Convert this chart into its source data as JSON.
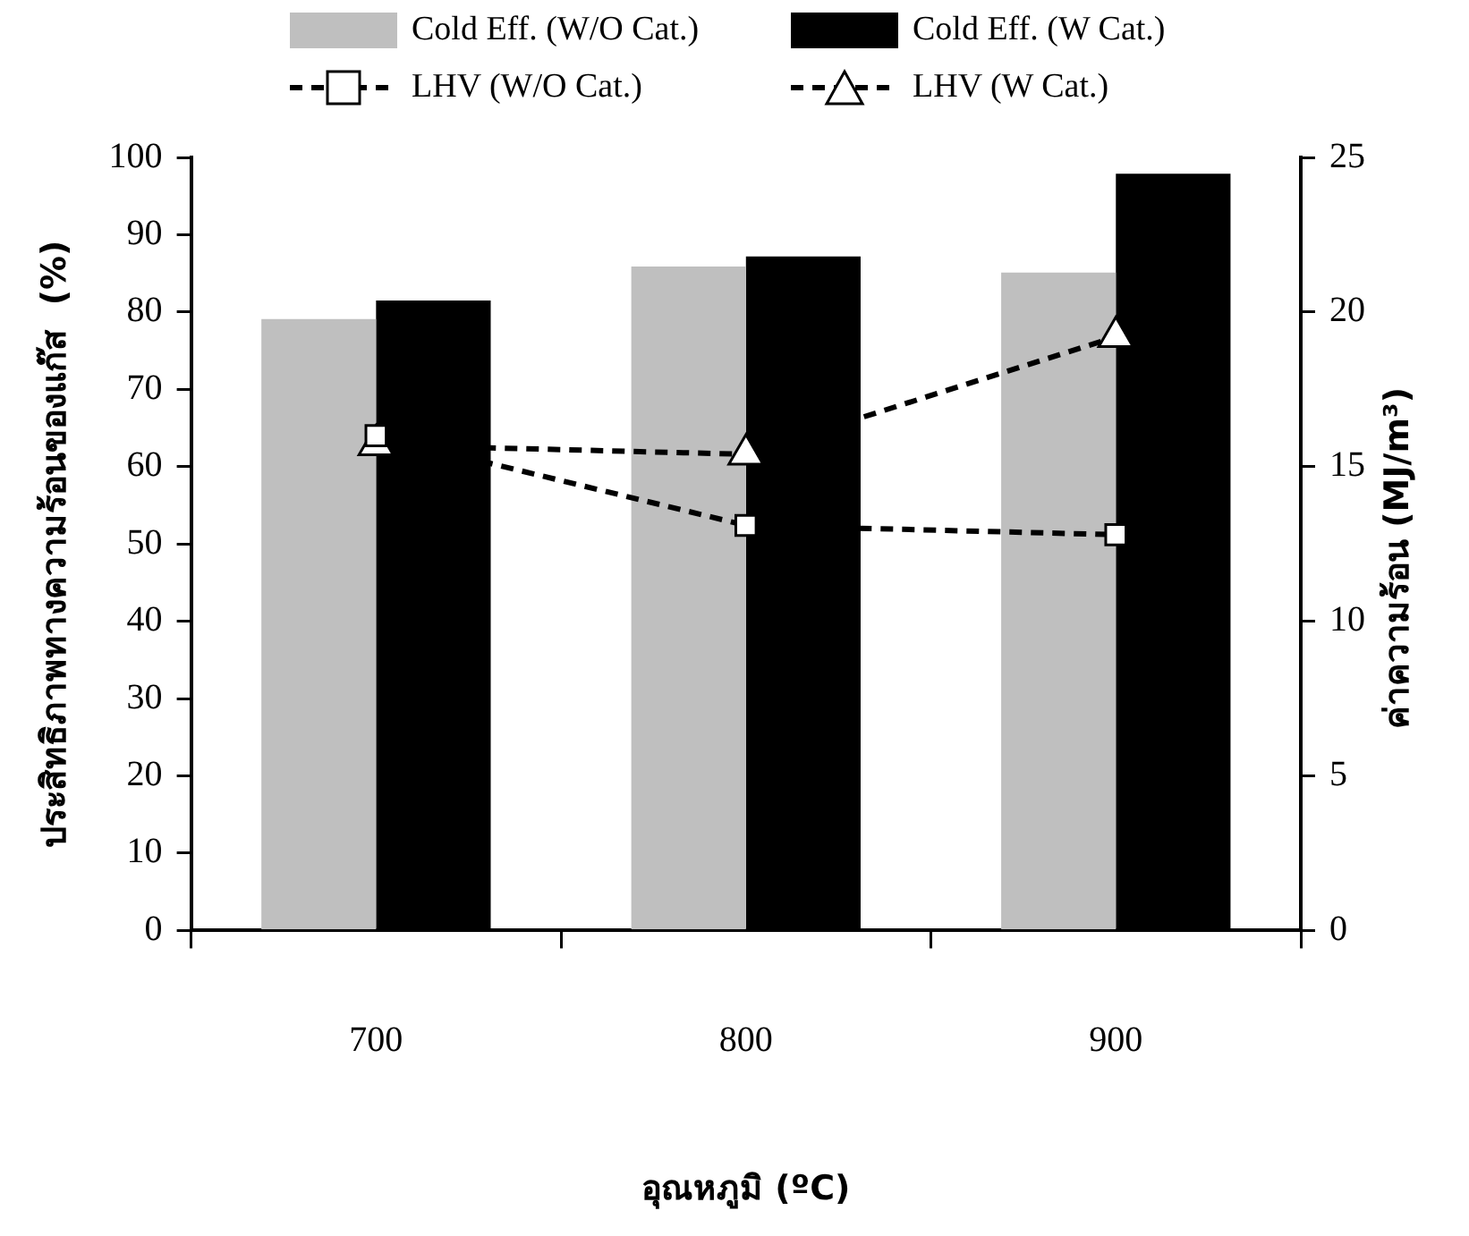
{
  "chart_data": {
    "type": "bar",
    "categories": [
      "700",
      "800",
      "900"
    ],
    "xlabel": "อุณหภูมิ (ºC)",
    "ylabel": "ประสิทธิภาพทางความร้อนของแก๊ส  (%)",
    "y2label": "ค่าความร้อน  (MJ/m³)",
    "series": [
      {
        "name": "Cold Eff. (W/O Cat.)",
        "color": "#bfbfbf",
        "values": [
          79.1,
          85.9,
          85.1
        ]
      },
      {
        "name": "Cold Eff. (W Cat.)",
        "color": "#000000",
        "values": [
          81.5,
          87.2,
          97.9
        ]
      },
      {
        "name": "LHV (W/O Cat.)",
        "type": "line",
        "axis": "y2",
        "color": "#000000",
        "marker": "square",
        "line_style": "dashed",
        "values": [
          16.0,
          13.1,
          12.8
        ]
      },
      {
        "name": "LHV (W Cat.)",
        "type": "line",
        "axis": "y2",
        "color": "#000000",
        "marker": "triangle",
        "line_style": "dashed",
        "values": [
          15.7,
          15.4,
          19.2
        ]
      }
    ],
    "ylim": [
      0,
      100
    ],
    "yticks": [
      0,
      10,
      20,
      30,
      40,
      50,
      60,
      70,
      80,
      90,
      100
    ],
    "y2lim": [
      0,
      25
    ],
    "y2ticks": [
      0,
      5,
      10,
      15,
      20,
      25
    ],
    "grid": false,
    "legend": "top"
  }
}
